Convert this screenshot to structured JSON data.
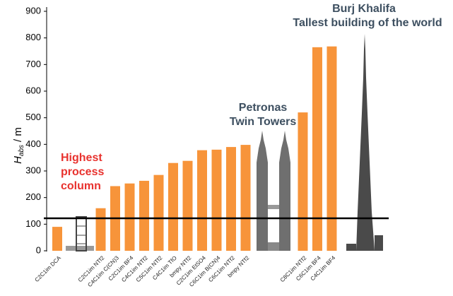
{
  "chart_data": {
    "type": "bar",
    "categories": [
      "C2C1im DCA",
      null,
      "C2C1im NTf2",
      "C4C1im C(CN)3",
      "C2C1im BF4",
      "C4C1im NTf2",
      "C5C1im NTf2",
      "C4C1im TfO",
      "bmpy NTf2",
      "C2C1im EtSO4",
      "C6C1im B(CN)4",
      "C6C1im NTf2",
      "bmpy NTf2",
      null,
      "C8C1im NTf2",
      "C6C1im BF4",
      "C4C1im BF4",
      null
    ],
    "values": [
      90,
      null,
      160,
      243,
      253,
      263,
      285,
      330,
      338,
      378,
      380,
      390,
      398,
      null,
      520,
      765,
      768,
      null
    ],
    "color": "#f7943a",
    "ylim": [
      0,
      900
    ],
    "yticks": [
      0,
      100,
      200,
      300,
      400,
      500,
      600,
      700,
      800,
      900
    ],
    "ylabel": "H",
    "ylabel_sub": "abs",
    "ylabel_suffix": "/ m",
    "reference_line": 122,
    "annotations": [
      "Highest",
      "process",
      "column",
      "Petronas",
      "Twin Towers",
      "Burj Khalifa",
      "Tallest building of the world"
    ]
  }
}
